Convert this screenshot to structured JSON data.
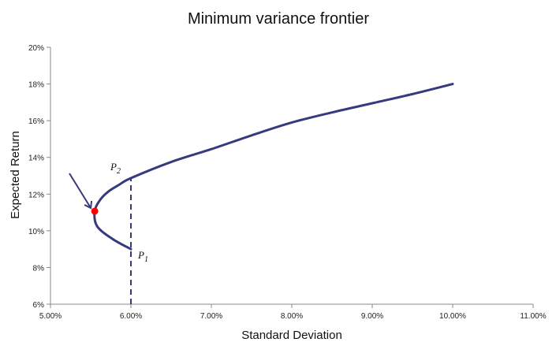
{
  "chart_data": {
    "type": "line",
    "title": "Minimum variance frontier",
    "xlabel": "Standard Deviation",
    "ylabel": "Expected Return",
    "xlim": [
      5,
      11
    ],
    "ylim": [
      6,
      20
    ],
    "x_ticks": [
      "5.00%",
      "6.00%",
      "7.00%",
      "8.00%",
      "9.00%",
      "10.00%",
      "11.00%"
    ],
    "y_ticks": [
      "6%",
      "8%",
      "10%",
      "12%",
      "14%",
      "16%",
      "18%",
      "20%"
    ],
    "grid": false,
    "series": [
      {
        "color": "#363a7e",
        "x": [
          6.0,
          5.77,
          5.58,
          5.55,
          5.62,
          5.72,
          5.85,
          6.0,
          6.5,
          7.0,
          7.5,
          8.0,
          8.5,
          9.0,
          9.5,
          10.0
        ],
        "y": [
          9.0,
          9.56,
          10.25,
          11.07,
          11.7,
          12.14,
          12.5,
          12.87,
          13.75,
          14.45,
          15.2,
          15.9,
          16.45,
          16.95,
          17.45,
          18.0
        ]
      }
    ],
    "min_variance_point": {
      "x": 5.55,
      "y": 11.07,
      "color": "#ff0000"
    },
    "dashed_line": {
      "x": 6.0,
      "y_from": 6,
      "y_to": 12.87
    },
    "annotations": [
      {
        "label": "P",
        "subscript": "2",
        "x": 6.0,
        "y": 12.87
      },
      {
        "label": "P",
        "subscript": "1",
        "x": 6.0,
        "y": 9.0
      }
    ]
  }
}
